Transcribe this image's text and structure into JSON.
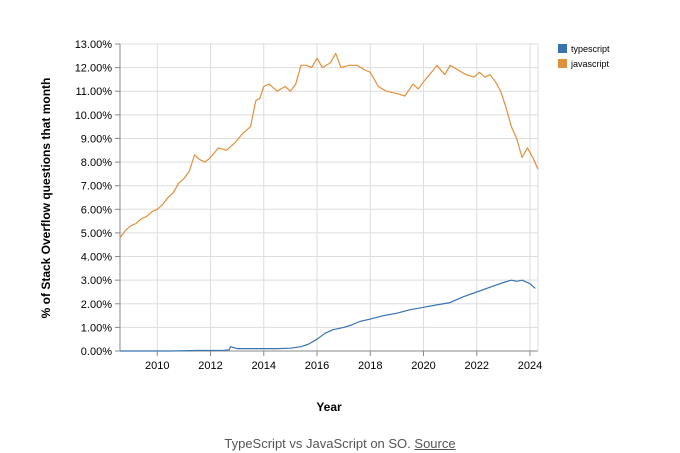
{
  "caption": {
    "text": "TypeScript vs JavaScript on SO. ",
    "link_label": "Source"
  },
  "chart_data": {
    "type": "line",
    "xlabel": "Year",
    "ylabel": "% of Stack Overflow questions that month",
    "xlim": [
      2008.6,
      2024.3
    ],
    "ylim": [
      0,
      13
    ],
    "x_ticks": [
      2010,
      2012,
      2014,
      2016,
      2018,
      2020,
      2022,
      2024
    ],
    "x_tick_labels": [
      "2010",
      "2012",
      "2014",
      "2016",
      "2018",
      "2020",
      "2022",
      "2024"
    ],
    "y_ticks": [
      0,
      1,
      2,
      3,
      4,
      5,
      6,
      7,
      8,
      9,
      10,
      11,
      12,
      13
    ],
    "y_tick_labels": [
      "0.00%",
      "1.00%",
      "2.00%",
      "3.00%",
      "4.00%",
      "5.00%",
      "6.00%",
      "7.00%",
      "8.00%",
      "9.00%",
      "10.00%",
      "11.00%",
      "12.00%",
      "13.00%"
    ],
    "grid": true,
    "legend_position": "top-right",
    "series": [
      {
        "name": "typescript",
        "color": "#3a72b0",
        "x": [
          2008.6,
          2009.5,
          2010.5,
          2011.5,
          2012.5,
          2012.7,
          2012.75,
          2013.0,
          2013.5,
          2014.0,
          2014.5,
          2015.0,
          2015.4,
          2015.7,
          2016.0,
          2016.3,
          2016.6,
          2017.0,
          2017.3,
          2017.6,
          2018.0,
          2018.5,
          2019.0,
          2019.5,
          2020.0,
          2020.5,
          2021.0,
          2021.5,
          2022.0,
          2022.5,
          2023.0,
          2023.3,
          2023.5,
          2023.7,
          2024.0,
          2024.2
        ],
        "values": [
          0.0,
          0.0,
          0.0,
          0.02,
          0.03,
          0.05,
          0.18,
          0.1,
          0.1,
          0.1,
          0.1,
          0.12,
          0.18,
          0.3,
          0.5,
          0.75,
          0.9,
          1.0,
          1.1,
          1.25,
          1.35,
          1.5,
          1.6,
          1.75,
          1.85,
          1.95,
          2.05,
          2.3,
          2.5,
          2.7,
          2.9,
          3.0,
          2.95,
          3.0,
          2.85,
          2.65
        ]
      },
      {
        "name": "javascript",
        "color": "#e0913c",
        "x": [
          2008.6,
          2008.8,
          2009.0,
          2009.2,
          2009.4,
          2009.6,
          2009.8,
          2010.0,
          2010.2,
          2010.4,
          2010.6,
          2010.8,
          2011.0,
          2011.2,
          2011.4,
          2011.6,
          2011.8,
          2012.0,
          2012.3,
          2012.6,
          2012.9,
          2013.2,
          2013.5,
          2013.7,
          2013.85,
          2014.0,
          2014.2,
          2014.5,
          2014.8,
          2015.0,
          2015.2,
          2015.4,
          2015.6,
          2015.8,
          2016.0,
          2016.2,
          2016.5,
          2016.7,
          2016.9,
          2017.2,
          2017.5,
          2017.8,
          2018.0,
          2018.3,
          2018.6,
          2019.0,
          2019.3,
          2019.6,
          2019.8,
          2020.0,
          2020.3,
          2020.5,
          2020.8,
          2021.0,
          2021.3,
          2021.6,
          2021.9,
          2022.1,
          2022.3,
          2022.5,
          2022.7,
          2022.9,
          2023.1,
          2023.3,
          2023.5,
          2023.7,
          2023.9,
          2024.1,
          2024.3
        ],
        "values": [
          4.8,
          5.1,
          5.3,
          5.4,
          5.6,
          5.7,
          5.9,
          6.0,
          6.2,
          6.5,
          6.7,
          7.1,
          7.3,
          7.6,
          8.3,
          8.1,
          8.0,
          8.2,
          8.6,
          8.5,
          8.8,
          9.2,
          9.5,
          10.6,
          10.7,
          11.2,
          11.3,
          11.0,
          11.2,
          11.0,
          11.3,
          12.1,
          12.1,
          12.0,
          12.4,
          12.0,
          12.2,
          12.6,
          12.0,
          12.1,
          12.1,
          11.9,
          11.8,
          11.2,
          11.0,
          10.9,
          10.8,
          11.3,
          11.1,
          11.4,
          11.8,
          12.1,
          11.7,
          12.1,
          11.9,
          11.7,
          11.6,
          11.8,
          11.6,
          11.7,
          11.4,
          11.0,
          10.3,
          9.5,
          9.0,
          8.2,
          8.6,
          8.2,
          7.7
        ]
      }
    ]
  }
}
